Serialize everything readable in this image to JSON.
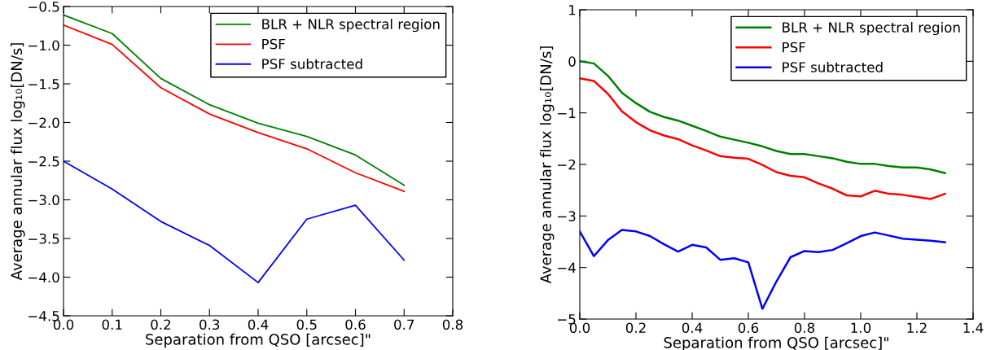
{
  "chart_data": [
    {
      "type": "line",
      "xlabel": "Separation from QSO [arcsec]\"",
      "ylabel": "Average annular flux log₁₀[DN/s]",
      "legend": "top right",
      "grid": false,
      "x": [
        0.0,
        0.1,
        0.2,
        0.3,
        0.4,
        0.5,
        0.6,
        0.7
      ],
      "xlim": [
        0.0,
        0.8
      ],
      "xticks": [
        {
          "value": 0.0,
          "label": "0.0"
        },
        {
          "value": 0.1,
          "label": "0.1"
        },
        {
          "value": 0.2,
          "label": "0.2"
        },
        {
          "value": 0.3,
          "label": "0.3"
        },
        {
          "value": 0.4,
          "label": "0.4"
        },
        {
          "value": 0.5,
          "label": "0.5"
        },
        {
          "value": 0.6,
          "label": "0.6"
        },
        {
          "value": 0.7,
          "label": "0.7"
        },
        {
          "value": 0.8,
          "label": "0.8"
        }
      ],
      "ylim": [
        -4.5,
        -0.5
      ],
      "yticks": [
        {
          "value": -4.5,
          "label": "−4.5"
        },
        {
          "value": -4.0,
          "label": "−4.0"
        },
        {
          "value": -3.5,
          "label": "−3.5"
        },
        {
          "value": -3.0,
          "label": "−3.0"
        },
        {
          "value": -2.5,
          "label": "−2.5"
        },
        {
          "value": -2.0,
          "label": "−2.0"
        },
        {
          "value": -1.5,
          "label": "−1.5"
        },
        {
          "value": -1.0,
          "label": "−1.0"
        },
        {
          "value": -0.5,
          "label": "−0.5"
        }
      ],
      "series": [
        {
          "name": "BLR + NLR spectral region",
          "color": "#008000",
          "values": [
            -0.61,
            -0.85,
            -1.43,
            -1.77,
            -2.01,
            -2.18,
            -2.42,
            -2.81
          ]
        },
        {
          "name": "PSF",
          "color": "#ff0000",
          "values": [
            -0.74,
            -0.99,
            -1.55,
            -1.89,
            -2.13,
            -2.34,
            -2.65,
            -2.89
          ]
        },
        {
          "name": "PSF subtracted",
          "color": "#0000ff",
          "values": [
            -2.5,
            -2.86,
            -3.28,
            -3.59,
            -4.07,
            -3.25,
            -3.07,
            -3.78
          ]
        }
      ]
    },
    {
      "type": "line",
      "xlabel": "Separation from QSO [arcsec]\"",
      "ylabel": "Average annular flux log₁₀[DN/s]",
      "legend": "top right",
      "grid": false,
      "x": [
        0.0,
        0.05,
        0.1,
        0.15,
        0.2,
        0.25,
        0.3,
        0.35,
        0.4,
        0.45,
        0.5,
        0.55,
        0.6,
        0.65,
        0.7,
        0.75,
        0.8,
        0.85,
        0.9,
        0.95,
        1.0,
        1.05,
        1.1,
        1.15,
        1.2,
        1.25,
        1.3
      ],
      "xlim": [
        0.0,
        1.4
      ],
      "xticks": [
        {
          "value": 0.0,
          "label": "0.0"
        },
        {
          "value": 0.2,
          "label": "0.2"
        },
        {
          "value": 0.4,
          "label": "0.4"
        },
        {
          "value": 0.6,
          "label": "0.6"
        },
        {
          "value": 0.8,
          "label": "0.8"
        },
        {
          "value": 1.0,
          "label": "1.0"
        },
        {
          "value": 1.2,
          "label": "1.2"
        },
        {
          "value": 1.4,
          "label": "1.4"
        }
      ],
      "ylim": [
        -5,
        1
      ],
      "yticks": [
        {
          "value": -5,
          "label": "−5"
        },
        {
          "value": -4,
          "label": "−4"
        },
        {
          "value": -3,
          "label": "−3"
        },
        {
          "value": -2,
          "label": "−2"
        },
        {
          "value": -1,
          "label": "−1"
        },
        0,
        1
      ],
      "series": [
        {
          "name": "BLR + NLR spectral region",
          "color": "#008000",
          "values": [
            0.0,
            -0.04,
            -0.28,
            -0.61,
            -0.81,
            -0.98,
            -1.08,
            -1.15,
            -1.25,
            -1.35,
            -1.46,
            -1.52,
            -1.58,
            -1.65,
            -1.74,
            -1.8,
            -1.8,
            -1.84,
            -1.88,
            -1.95,
            -1.99,
            -1.99,
            -2.03,
            -2.06,
            -2.06,
            -2.1,
            -2.17
          ]
        },
        {
          "name": "PSF",
          "color": "#ff0000",
          "values": [
            -0.33,
            -0.38,
            -0.63,
            -0.97,
            -1.18,
            -1.34,
            -1.44,
            -1.51,
            -1.63,
            -1.73,
            -1.84,
            -1.87,
            -1.89,
            -2.01,
            -2.15,
            -2.22,
            -2.25,
            -2.37,
            -2.47,
            -2.6,
            -2.62,
            -2.51,
            -2.57,
            -2.59,
            -2.63,
            -2.67,
            -2.57
          ]
        },
        {
          "name": "PSF subtracted",
          "color": "#0000ff",
          "values": [
            -3.3,
            -3.78,
            -3.47,
            -3.27,
            -3.3,
            -3.39,
            -3.55,
            -3.69,
            -3.56,
            -3.61,
            -3.85,
            -3.82,
            -3.9,
            -4.8,
            -4.27,
            -3.8,
            -3.68,
            -3.7,
            -3.66,
            -3.53,
            -3.39,
            -3.32,
            -3.38,
            -3.44,
            -3.46,
            -3.48,
            -3.51
          ]
        }
      ]
    }
  ]
}
